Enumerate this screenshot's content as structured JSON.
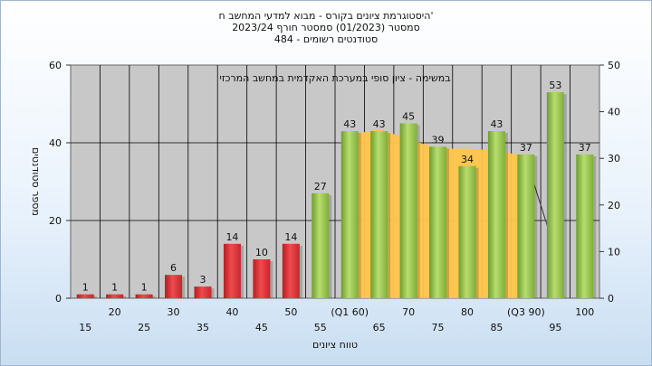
{
  "chart_data": {
    "type": "bar",
    "title_lines": [
      "היסטוגרמת ציונים בקורס - מבוא למדעי המחשב ח'",
      "סמסטר  (01/2023)  סמסטר חורף  2023/24",
      "484 - סטודנטים רשומים"
    ],
    "annotation": "במשימה - ציון סופי במערכת האקדמית במחשב המרכזי",
    "ylabel": "מספר סטודנטים",
    "xlabel": "טווח ציונים",
    "ylim_left": [
      0,
      60
    ],
    "yticks_left": [
      0,
      20,
      40,
      60
    ],
    "ylim_right": [
      0,
      50
    ],
    "yticks_right": [
      0,
      10,
      20,
      30,
      40,
      50
    ],
    "grid": true,
    "categories": [
      "15",
      "20",
      "25",
      "30",
      "35",
      "40",
      "45",
      "50",
      "55",
      "(Q1 60)",
      "65",
      "70",
      "75",
      "80",
      "85",
      "(Q3 90)",
      "95",
      "100"
    ],
    "values": [
      1,
      1,
      1,
      6,
      3,
      14,
      10,
      14,
      27,
      43,
      43,
      45,
      39,
      34,
      43,
      37,
      53,
      37
    ],
    "bar_colors": [
      "#e0353b",
      "#e0353b",
      "#e0353b",
      "#e0353b",
      "#e0353b",
      "#e0353b",
      "#e0353b",
      "#e0353b",
      "#8cbf44",
      "#8cbf44",
      "#8cbf44",
      "#8cbf44",
      "#8cbf44",
      "#8cbf44",
      "#8cbf44",
      "#8cbf44",
      "#8cbf44",
      "#8cbf44"
    ],
    "area_series": {
      "color": "#ffc64a",
      "x_categories": [
        "(Q1 60)",
        "65",
        "70",
        "75",
        "80",
        "85",
        "(Q3 90)"
      ],
      "values": [
        42,
        43.5,
        41,
        38.5,
        38.5,
        38,
        36.5
      ]
    },
    "trend_line": {
      "color": "#333333",
      "from": {
        "category": "(Q3 90)",
        "value": 36
      },
      "to": {
        "category": "95",
        "value": 12
      }
    },
    "colors": {
      "plot_bg": "#c8c8c8",
      "grid": "#000000",
      "red_bar": "#e0353b",
      "green_bar": "#8cbf44"
    }
  }
}
